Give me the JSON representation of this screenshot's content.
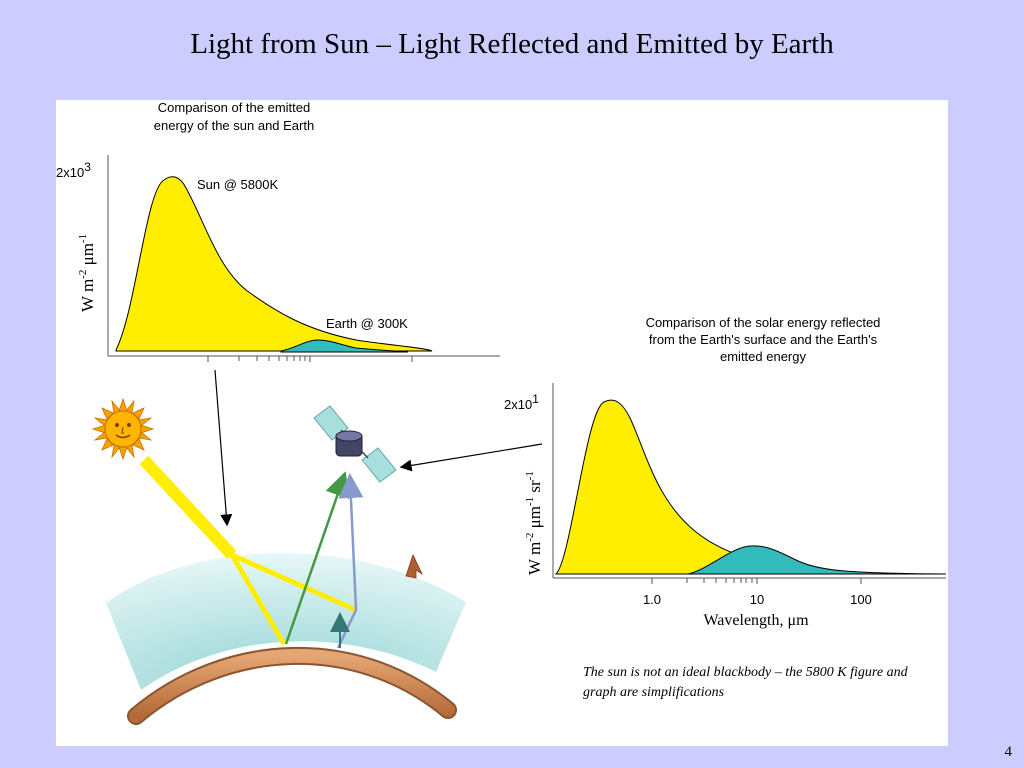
{
  "slide": {
    "title": "Light from Sun – Light Reflected and Emitted by Earth",
    "page_number": "4"
  },
  "top_chart": {
    "title_line1": "Comparison of the emitted",
    "title_line2": "energy of the sun and Earth",
    "ymax_label_base": "2x10",
    "ymax_label_exp": "3",
    "ylabel_a": "W m",
    "ylabel_sup1": "-2",
    "ylabel_b": " μm",
    "ylabel_sup2": "-1",
    "sun_label": "Sun @ 5800K",
    "earth_label": "Earth @ 300K"
  },
  "bottom_chart": {
    "title_line1": "Comparison of the solar energy reflected",
    "title_line2": "from the Earth's surface and the Earth's",
    "title_line3": "emitted energy",
    "ymax_label_base": "2x10",
    "ymax_label_exp": "1",
    "ylabel_a": "W m",
    "ylabel_sup1": "-2",
    "ylabel_b": " μm",
    "ylabel_sup2": "-1",
    "ylabel_c": " sr",
    "ylabel_sup3": "-1",
    "xtick_1": "1.0",
    "xtick_2": "10",
    "xtick_3": "100",
    "xlabel": "Wavelength, μm"
  },
  "note": "The sun is not an ideal blackbody – the 5800 K figure and graph are simplifications",
  "colors": {
    "background": "#ccccff",
    "panel": "#ffffff",
    "sun_curve": "#ffee00",
    "earth_curve": "#33bbbb",
    "atmosphere": "#bfe6e6",
    "ground": "#c8804a",
    "green_arrow": "#449944",
    "blue_arrow": "#8899cc"
  },
  "icons": [
    "sun-icon",
    "satellite-icon"
  ]
}
